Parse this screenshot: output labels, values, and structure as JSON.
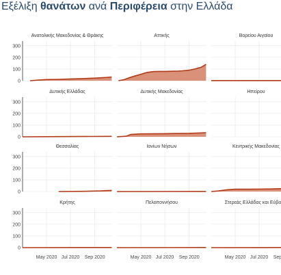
{
  "title": {
    "part1": "Εξέλιξη ",
    "part2": "θανάτων",
    "part3": " ανά ",
    "part4": "Περιφέρεια",
    "part5": " στην Ελλάδα"
  },
  "colors": {
    "title": "#2b4a6b",
    "line": "#b23a17",
    "area": "#d9917a",
    "grid": "#e3e3e3",
    "axis": "#333333"
  },
  "chart_data": {
    "type": "area",
    "grid": true,
    "ylim": [
      0,
      340
    ],
    "yticks": [
      0,
      100,
      200,
      300
    ],
    "xticks": [
      "2020-05-01",
      "2020-07-01",
      "2020-09-01"
    ],
    "xtick_labels": [
      "May 2020",
      "Jul 2020",
      "Sep 2020"
    ],
    "xlim": [
      "2020-03-01",
      "2020-10-15"
    ],
    "panels": [
      {
        "name": "Ανατολικής Μακεδονίας & Θράκης",
        "x": [
          "2020-03-20",
          "2020-04-10",
          "2020-05-01",
          "2020-06-01",
          "2020-07-01",
          "2020-08-01",
          "2020-09-01",
          "2020-10-01",
          "2020-10-14"
        ],
        "y": [
          0,
          5,
          10,
          12,
          15,
          18,
          22,
          28,
          32
        ]
      },
      {
        "name": "Αττικής",
        "x": [
          "2020-03-05",
          "2020-03-20",
          "2020-04-01",
          "2020-04-15",
          "2020-05-01",
          "2020-05-15",
          "2020-06-01",
          "2020-06-15",
          "2020-07-01",
          "2020-08-01",
          "2020-08-15",
          "2020-09-01",
          "2020-09-15",
          "2020-10-01",
          "2020-10-14"
        ],
        "y": [
          0,
          10,
          25,
          40,
          55,
          70,
          78,
          80,
          80,
          82,
          85,
          90,
          100,
          115,
          140
        ]
      },
      {
        "name": "Βορείου Αιγαίου",
        "x": [
          "2020-03-01",
          "2020-10-14"
        ],
        "y": [
          1,
          1
        ]
      },
      {
        "name": "Δυτικής Ελλάδας",
        "x": [
          "2020-03-01",
          "2020-06-01",
          "2020-10-14"
        ],
        "y": [
          0,
          2,
          4
        ]
      },
      {
        "name": "Δυτικής Μακεδονίας",
        "x": [
          "2020-03-01",
          "2020-03-25",
          "2020-04-05",
          "2020-05-01",
          "2020-07-01",
          "2020-09-01",
          "2020-10-14"
        ],
        "y": [
          0,
          5,
          20,
          25,
          27,
          30,
          35
        ]
      },
      {
        "name": "Ηπείρου",
        "x": [
          "2020-09-20",
          "2020-10-14"
        ],
        "y": [
          0,
          2
        ]
      },
      {
        "name": "Θεσσαλίας",
        "x": [
          "2020-06-01",
          "2020-08-01",
          "2020-09-15",
          "2020-10-14"
        ],
        "y": [
          0,
          2,
          5,
          10
        ]
      },
      {
        "name": "Ιονίων Νήσων",
        "x": [
          "2020-03-01",
          "2020-10-14"
        ],
        "y": [
          0,
          1
        ]
      },
      {
        "name": "Κεντρικής Μακεδονίας",
        "x": [
          "2020-03-01",
          "2020-03-20",
          "2020-04-10",
          "2020-05-01",
          "2020-06-01",
          "2020-08-01",
          "2020-09-01",
          "2020-09-20",
          "2020-10-01",
          "2020-10-14"
        ],
        "y": [
          0,
          5,
          15,
          20,
          20,
          22,
          25,
          25,
          30,
          40
        ]
      },
      {
        "name": "Κρήτης",
        "x": [
          "2020-03-01",
          "2020-10-14"
        ],
        "y": [
          0,
          1
        ]
      },
      {
        "name": "Πελοποννήσου",
        "x": [
          "2020-03-01",
          "2020-10-14"
        ],
        "y": [
          0,
          1
        ]
      },
      {
        "name": "Στερεάς Ελλάδας και Εύβοιας",
        "x": [
          "2020-03-01",
          "2020-10-14"
        ],
        "y": [
          0,
          1
        ]
      }
    ]
  }
}
